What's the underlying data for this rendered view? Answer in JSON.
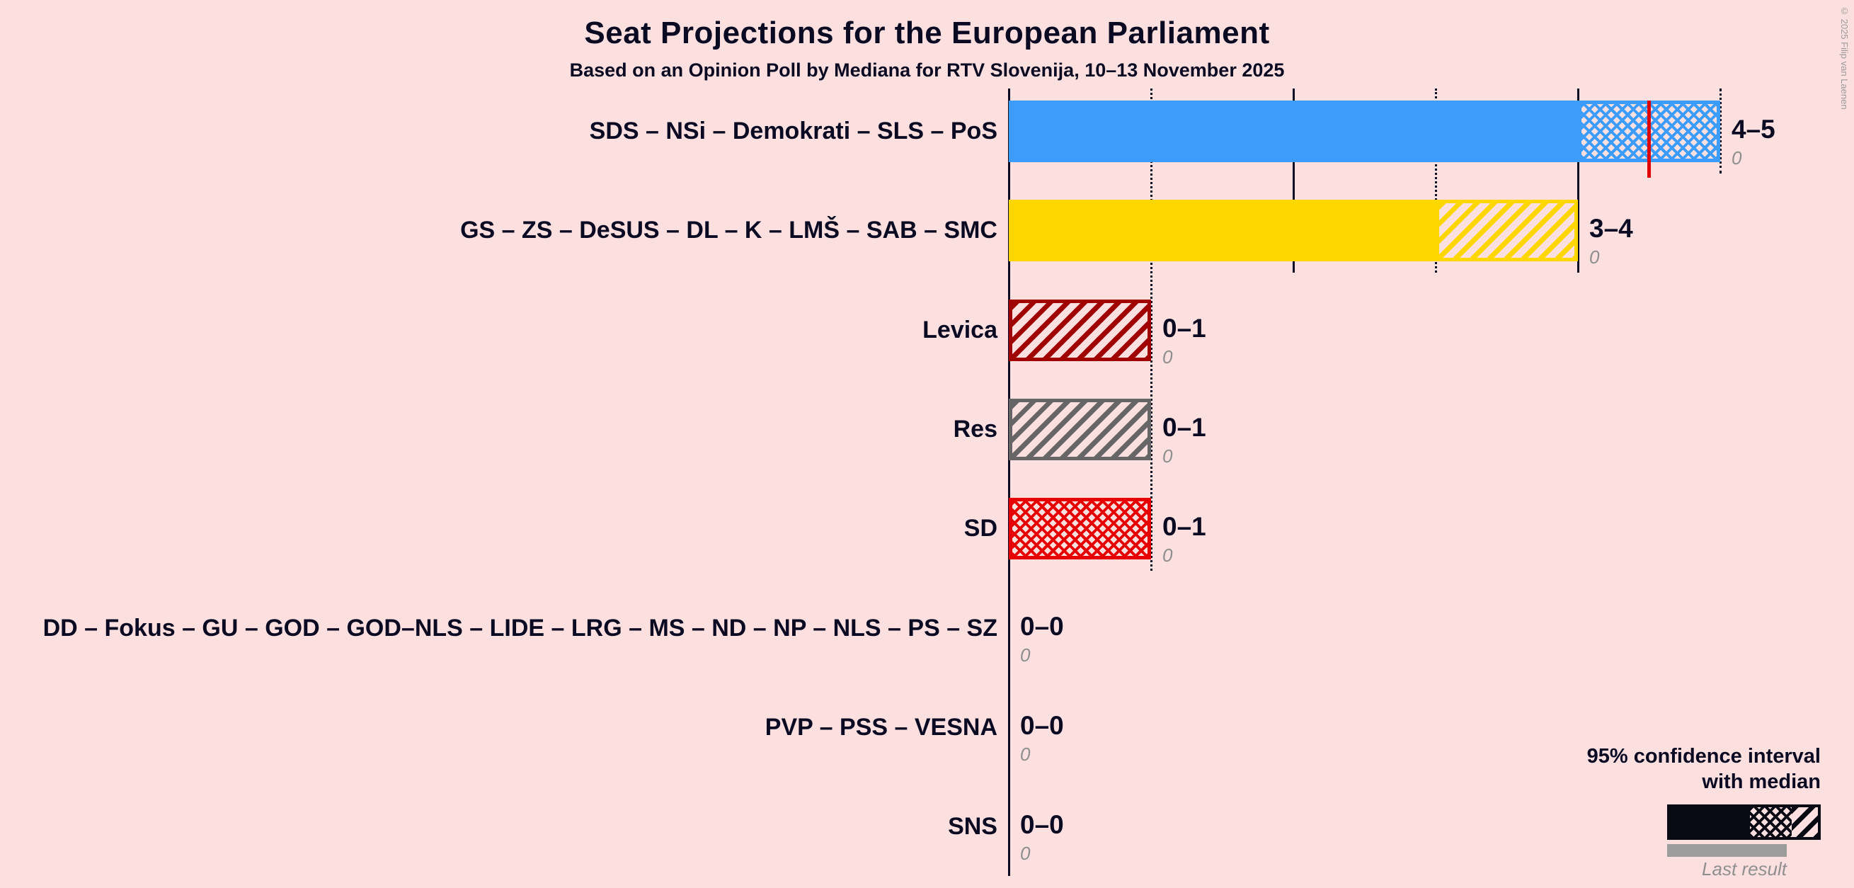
{
  "page": {
    "background": "#FCE0E0",
    "ink_color": "#0A0A23"
  },
  "copyright": "© 2025 Filip van Laenen",
  "legend": {
    "ci_line1": "95% confidence interval",
    "ci_line2": "with median",
    "last_result": "Last result"
  },
  "chart_data": {
    "type": "bar",
    "orientation": "horizontal",
    "title": "Seat Projections for the European Parliament",
    "subtitle": "Based on an Opinion Poll by Mediana for RTV Slovenija, 10–13 November 2025",
    "xlabel": "",
    "ylabel": "",
    "x_axis": {
      "min": 0,
      "max": 5,
      "ticks": [
        {
          "seat": 1,
          "style": "dotted",
          "depth_rows": 5
        },
        {
          "seat": 2,
          "style": "solid",
          "depth_rows": 2
        },
        {
          "seat": 3,
          "style": "dotted",
          "depth_rows": 2
        },
        {
          "seat": 4,
          "style": "solid",
          "depth_rows": 2
        },
        {
          "seat": 5,
          "style": "dotted",
          "depth_rows": 1
        }
      ]
    },
    "series": [
      {
        "name": "SDS – NSi – Demokrati – SLS – PoS",
        "color": "#3B9CFC",
        "solid_from": 0,
        "solid_to": 4,
        "ci_from": 4,
        "ci_to": 5,
        "ci_pattern": "crosshatch",
        "median": 4.5,
        "median_color": "#E00000",
        "value_label": "4–5",
        "last_result": 0,
        "last_result_label": "0"
      },
      {
        "name": "GS – ZS – DeSUS – DL – K – LMŠ – SAB – SMC",
        "color": "#FFD700",
        "solid_from": 0,
        "solid_to": 3,
        "ci_from": 3,
        "ci_to": 4,
        "ci_pattern": "diagonal",
        "value_label": "3–4",
        "last_result": 0,
        "last_result_label": "0"
      },
      {
        "name": "Levica",
        "color": "#A00000",
        "solid_from": 0,
        "solid_to": 0,
        "ci_from": 0,
        "ci_to": 1,
        "ci_pattern": "diagonal",
        "value_label": "0–1",
        "last_result": 0,
        "last_result_label": "0"
      },
      {
        "name": "Res",
        "color": "#666666",
        "solid_from": 0,
        "solid_to": 0,
        "ci_from": 0,
        "ci_to": 1,
        "ci_pattern": "diagonal",
        "value_label": "0–1",
        "last_result": 0,
        "last_result_label": "0"
      },
      {
        "name": "SD",
        "color": "#E60000",
        "solid_from": 0,
        "solid_to": 0,
        "ci_from": 0,
        "ci_to": 1,
        "ci_pattern": "crosshatch",
        "value_label": "0–1",
        "last_result": 0,
        "last_result_label": "0"
      },
      {
        "name": "DD – Fokus – GU – GOD – GOD–NLS – LIDE – LRG – MS – ND – NP – NLS – PS – SZ",
        "color": "#888888",
        "solid_from": 0,
        "solid_to": 0,
        "ci_from": 0,
        "ci_to": 0,
        "ci_pattern": "none",
        "value_label": "0–0",
        "last_result": 0,
        "last_result_label": "0"
      },
      {
        "name": "PVP – PSS – VESNA",
        "color": "#888888",
        "solid_from": 0,
        "solid_to": 0,
        "ci_from": 0,
        "ci_to": 0,
        "ci_pattern": "none",
        "value_label": "0–0",
        "last_result": 0,
        "last_result_label": "0"
      },
      {
        "name": "SNS",
        "color": "#888888",
        "solid_from": 0,
        "solid_to": 0,
        "ci_from": 0,
        "ci_to": 0,
        "ci_pattern": "none",
        "value_label": "0–0",
        "last_result": 0,
        "last_result_label": "0"
      }
    ]
  }
}
